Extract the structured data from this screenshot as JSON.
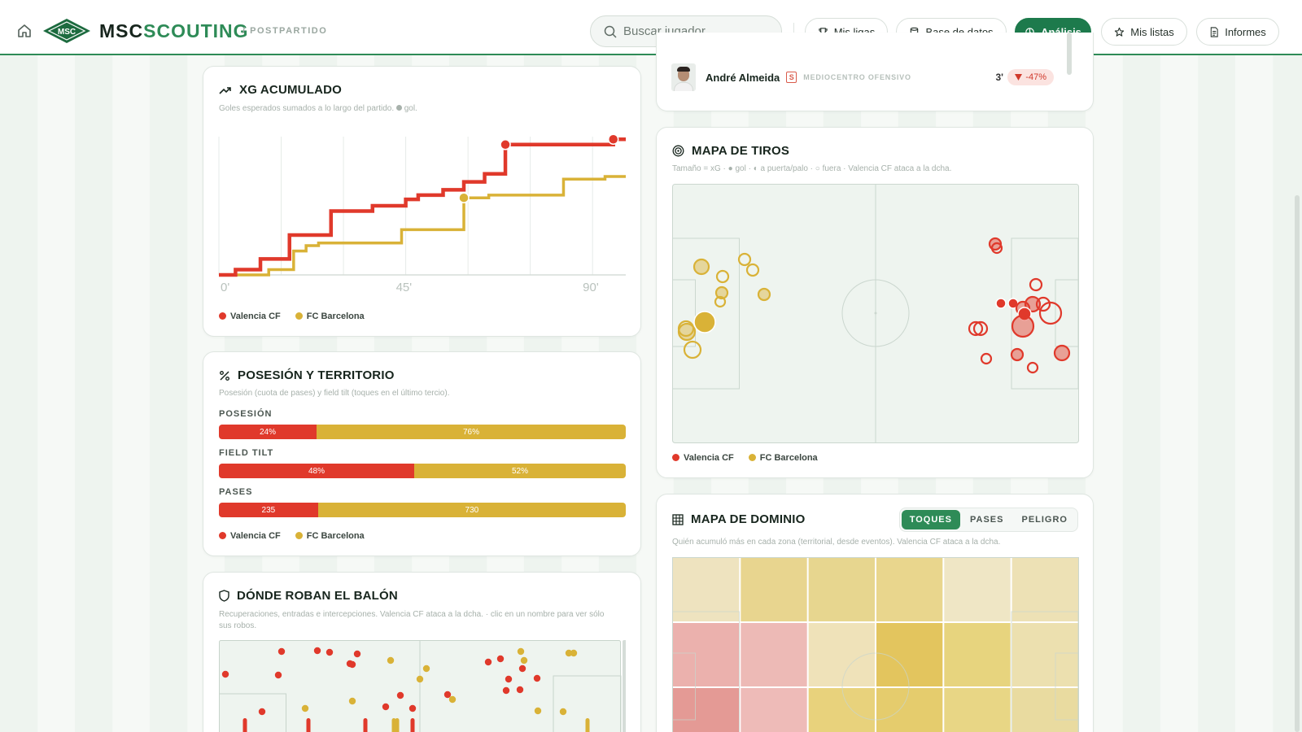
{
  "header": {
    "brand_part1": "MSC",
    "brand_part2": "SCOUTING",
    "logo_text": "MSC",
    "breadcrumb": "/ POSTPARTIDO",
    "search_placeholder": "Buscar jugador...",
    "nav": [
      {
        "label": "Mis ligas",
        "icon": "trophy-icon"
      },
      {
        "label": "Base de datos",
        "icon": "database-icon"
      },
      {
        "label": "Análisis",
        "icon": "analysis-icon",
        "active": true
      },
      {
        "label": "Mis listas",
        "icon": "star-icon"
      },
      {
        "label": "Informes",
        "icon": "document-icon"
      }
    ]
  },
  "colors": {
    "valencia": "#e0392b",
    "barcelona": "#d9b237",
    "accent": "#2e8b57"
  },
  "teams": {
    "home": "Valencia CF",
    "away": "FC Barcelona"
  },
  "xg_card": {
    "title": "XG ACUMULADO",
    "subtitle": "Goles esperados sumados a lo largo del partido.",
    "subtitle_tail": "gol.",
    "ticks": [
      "0'",
      "45'",
      "90'"
    ]
  },
  "chart_data": {
    "type": "line",
    "title": "XG ACUMULADO",
    "xlabel": "",
    "ylabel": "",
    "xlim": [
      0,
      98
    ],
    "ylim": [
      0,
      2.6
    ],
    "x_tick_labels": [
      "0'",
      "45'",
      "90'"
    ],
    "series": [
      {
        "name": "Valencia CF",
        "steps": [
          [
            0,
            0.0
          ],
          [
            4,
            0.1
          ],
          [
            10,
            0.3
          ],
          [
            17,
            0.75
          ],
          [
            27,
            1.2
          ],
          [
            37,
            1.3
          ],
          [
            45,
            1.42
          ],
          [
            48,
            1.5
          ],
          [
            54,
            1.6
          ],
          [
            59,
            1.75
          ],
          [
            64,
            1.9
          ],
          [
            69,
            2.45
          ],
          [
            95,
            2.55
          ]
        ],
        "goals": [
          69,
          95
        ]
      },
      {
        "name": "FC Barcelona",
        "steps": [
          [
            0,
            0.0
          ],
          [
            12,
            0.1
          ],
          [
            18,
            0.45
          ],
          [
            21,
            0.55
          ],
          [
            24,
            0.6
          ],
          [
            44,
            0.85
          ],
          [
            59,
            1.45
          ],
          [
            65,
            1.5
          ],
          [
            83,
            1.8
          ],
          [
            93,
            1.85
          ]
        ],
        "goals": [
          59
        ]
      }
    ]
  },
  "possession_card": {
    "title": "POSESIÓN Y TERRITORIO",
    "subtitle": "Posesión (cuota de pases) y field tilt (toques en el último tercio).",
    "rows": [
      {
        "label": "POSESIÓN",
        "home": 24,
        "away": 76,
        "home_text": "24%",
        "away_text": "76%"
      },
      {
        "label": "FIELD TILT",
        "home": 48,
        "away": 52,
        "home_text": "48%",
        "away_text": "52%"
      },
      {
        "label": "PASES",
        "home": 235,
        "away": 730,
        "home_text": "235",
        "away_text": "730"
      }
    ]
  },
  "steal_card": {
    "title": "DÓNDE ROBAN EL BALÓN",
    "subtitle": "Recuperaciones, entradas e intercepciones. Valencia CF ataca a la dcha. · clic en un nombre para ver sólo sus robos."
  },
  "player": {
    "name": "André Almeida",
    "badge": "S",
    "role": "MEDIOCENTRO OFENSIVO",
    "minute": "3'",
    "delta": "-47%"
  },
  "shots_card": {
    "title": "MAPA DE TIROS",
    "subtitle": "Tamaño = xG · ● gol · ◐ a puerta/palo · ○ fuera · Valencia CF ataca a la dcha."
  },
  "dominance_card": {
    "title": "MAPA DE DOMINIO",
    "subtitle": "Quién acumuló más en cada zona (territorial, desde eventos). Valencia CF ataca a la dcha.",
    "tabs": [
      "TOQUES",
      "PASES",
      "PELIGRO"
    ],
    "active_tab": "TOQUES"
  }
}
